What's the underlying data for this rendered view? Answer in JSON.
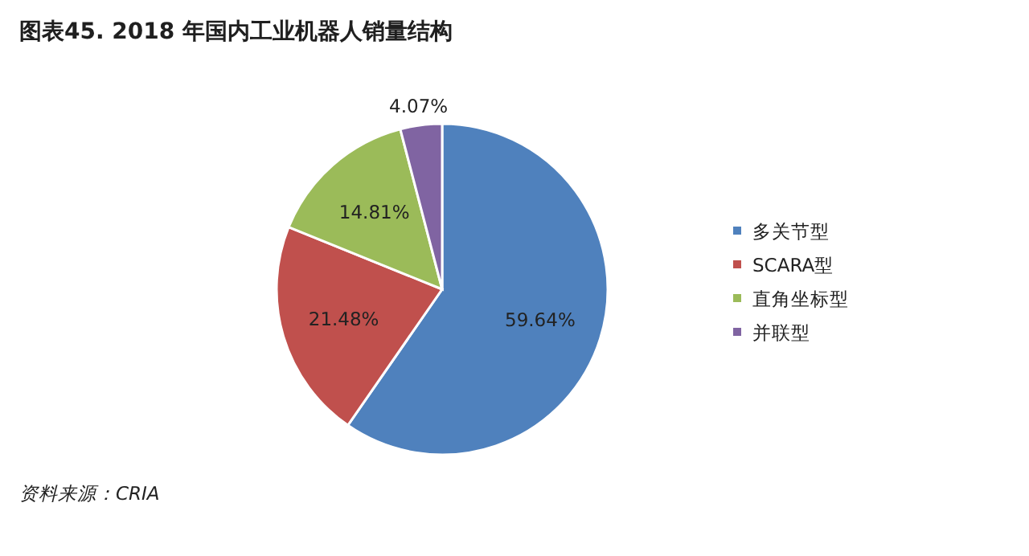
{
  "chart_data": {
    "type": "pie",
    "title": "图表45.  2018 年国内工业机器人销量结构",
    "categories": [
      "多关节型",
      "SCARA型",
      "直角坐标型",
      "并联型"
    ],
    "values": [
      59.64,
      21.48,
      14.81,
      4.07
    ],
    "colors": [
      "#4f81bd",
      "#c0504d",
      "#9bbb59",
      "#8064a2"
    ],
    "value_labels": [
      "59.64%",
      "21.48%",
      "14.81%",
      "4.07%"
    ],
    "legend": "right",
    "annotations": [
      "资料来源：CRIA"
    ]
  }
}
